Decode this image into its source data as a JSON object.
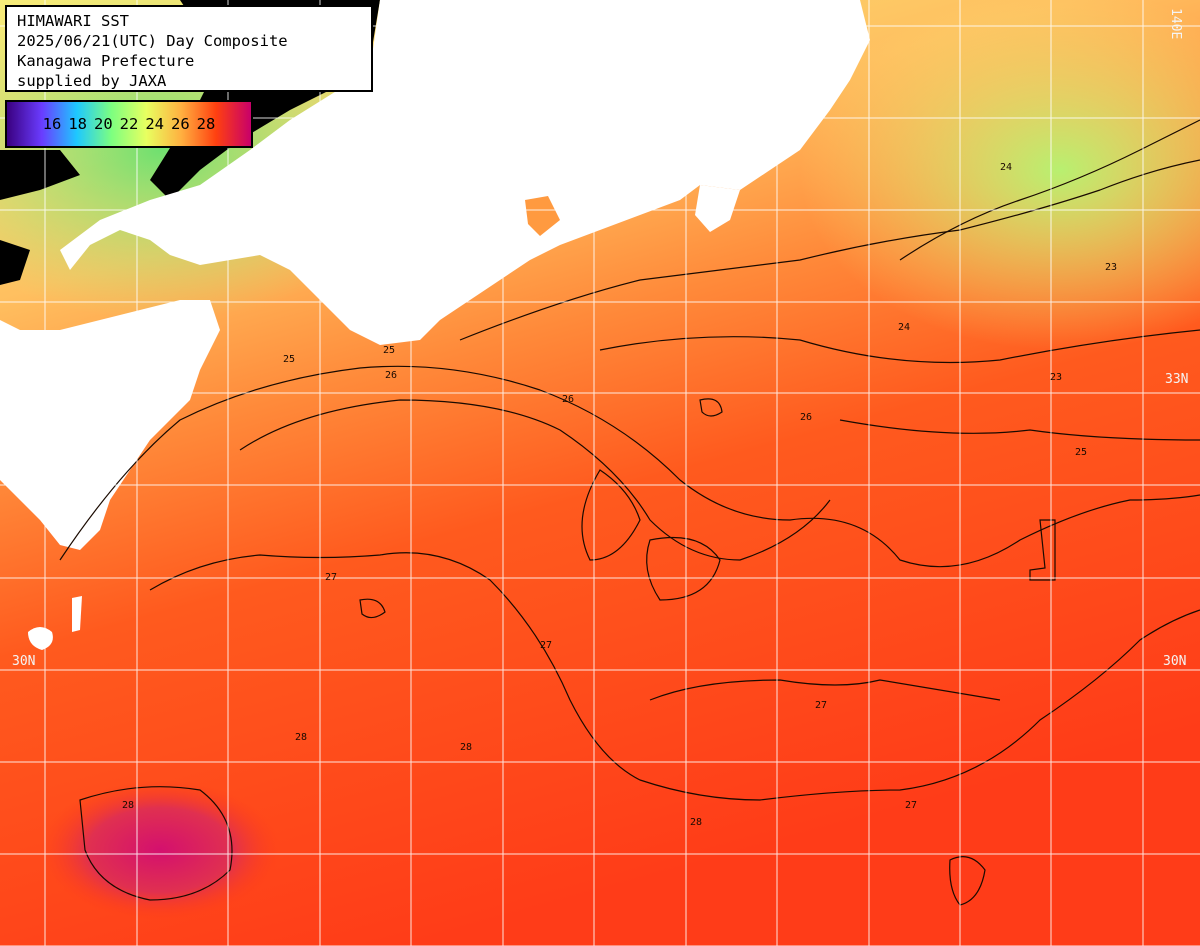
{
  "title": {
    "line1": "HIMAWARI SST",
    "line2": "2025/06/21(UTC) Day Composite",
    "line3": "Kanagawa Prefecture",
    "line4": "supplied by JAXA"
  },
  "legend": {
    "ticks": [
      "16",
      "18",
      "20",
      "22",
      "24",
      "26",
      "28"
    ],
    "colors": [
      "#3a0080",
      "#6a3cff",
      "#1ec8ff",
      "#7dff80",
      "#e8ff60",
      "#ffb040",
      "#ff4010",
      "#c8006a"
    ]
  },
  "grid_labels": {
    "lat_33": "33N",
    "lat_30_left": "30N",
    "lat_30_right": "30N",
    "lon_top": "140E"
  },
  "contour_labels": [
    "25",
    "25",
    "26",
    "26",
    "26",
    "27",
    "27",
    "27",
    "27",
    "24",
    "24",
    "23",
    "23",
    "25",
    "28",
    "28",
    "28",
    "28"
  ],
  "colors": {
    "land": "#ffffff",
    "sea_warm": "#ff5a1e",
    "sea_mid": "#ffa050",
    "sea_cool": "#f6ec7a",
    "sea_cold": "#90f080",
    "hot_core": "#d4106e",
    "cloud": "#000000",
    "grid": "#ffffff"
  }
}
